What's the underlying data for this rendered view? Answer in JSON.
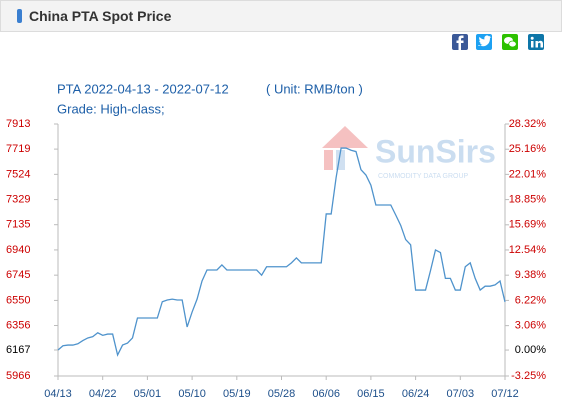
{
  "header": {
    "title": "China PTA Spot Price"
  },
  "chart_data": {
    "type": "line",
    "subtitle": "PTA 2022-04-13 - 2022-07-12",
    "unit": "( Unit: RMB/ton )",
    "grade": "Grade: High-class;",
    "watermark": {
      "name": "SunSirs",
      "tagline": "COMMODITY DATA GROUP"
    },
    "categories": [
      "04/13",
      null,
      null,
      null,
      null,
      null,
      null,
      null,
      null,
      "04/22",
      null,
      null,
      null,
      null,
      null,
      null,
      null,
      null,
      "05/01",
      null,
      null,
      null,
      null,
      null,
      null,
      null,
      null,
      "05/10",
      null,
      null,
      null,
      null,
      null,
      null,
      null,
      null,
      "05/19",
      null,
      null,
      null,
      null,
      null,
      null,
      null,
      null,
      "05/28",
      null,
      null,
      null,
      null,
      null,
      null,
      null,
      null,
      "06/06",
      null,
      null,
      null,
      null,
      null,
      null,
      null,
      null,
      "06/15",
      null,
      null,
      null,
      null,
      null,
      null,
      null,
      null,
      "06/24",
      null,
      null,
      null,
      null,
      null,
      null,
      null,
      null,
      "07/03",
      null,
      null,
      null,
      null,
      null,
      null,
      null,
      null,
      "07/12"
    ],
    "values": [
      6167,
      6200,
      6205,
      6205,
      6215,
      6240,
      6260,
      6270,
      6300,
      6280,
      6290,
      6290,
      6128,
      6205,
      6220,
      6260,
      6414,
      6414,
      6414,
      6414,
      6414,
      6540,
      6553,
      6560,
      6553,
      6553,
      6345,
      6460,
      6560,
      6700,
      6785,
      6785,
      6785,
      6824,
      6785,
      6785,
      6785,
      6785,
      6785,
      6785,
      6785,
      6745,
      6810,
      6810,
      6810,
      6810,
      6810,
      6840,
      6878,
      6840,
      6840,
      6840,
      6840,
      6840,
      7218,
      7218,
      7500,
      7727,
      7727,
      7710,
      7700,
      7560,
      7519,
      7440,
      7287,
      7287,
      7287,
      7287,
      7210,
      7130,
      7020,
      6980,
      6630,
      6630,
      6630,
      6780,
      6940,
      6920,
      6720,
      6720,
      6630,
      6630,
      6810,
      6840,
      6720,
      6630,
      6660,
      6660,
      6670,
      6700,
      6538
    ],
    "color": "#4f93cc",
    "ylim": [
      5966,
      7913
    ],
    "yticks": [
      7913,
      7719,
      7524,
      7329,
      7135,
      6940,
      6745,
      6550,
      6356,
      6167,
      5966
    ],
    "y2lim": [
      -3.25,
      28.32
    ],
    "y2ticks": [
      {
        "value": 28.32,
        "label": "28.32%"
      },
      {
        "value": 25.16,
        "label": "25.16%"
      },
      {
        "value": 22.01,
        "label": "22.01%"
      },
      {
        "value": 18.85,
        "label": "18.85%"
      },
      {
        "value": 15.69,
        "label": "15.69%"
      },
      {
        "value": 12.54,
        "label": "12.54%"
      },
      {
        "value": 9.38,
        "label": "9.38%"
      },
      {
        "value": 6.22,
        "label": "6.22%"
      },
      {
        "value": 3.06,
        "label": "3.06%"
      },
      {
        "value": 0,
        "label": "0.00%"
      },
      {
        "value": -3.25,
        "label": "-3.25%"
      }
    ],
    "tick_color": "#cc0000",
    "grid": false
  }
}
